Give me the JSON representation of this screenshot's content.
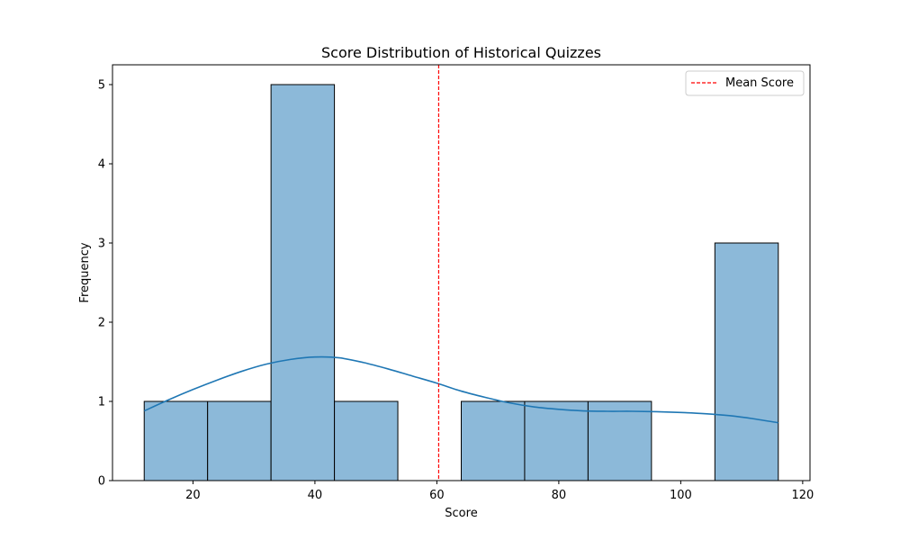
{
  "chart_data": {
    "type": "bar",
    "title": "Score Distribution of Historical Quizzes",
    "xlabel": "Score",
    "ylabel": "Frequency",
    "xlim": [
      6.8,
      121.2
    ],
    "ylim": [
      0,
      5.25
    ],
    "xticks": [
      20,
      40,
      60,
      80,
      100,
      120
    ],
    "yticks": [
      0,
      1,
      2,
      3,
      4,
      5
    ],
    "bin_edges": [
      12,
      22.4,
      32.8,
      43.2,
      53.6,
      64,
      74.4,
      84.8,
      95.2,
      105.6,
      116
    ],
    "values": [
      1,
      1,
      5,
      1,
      0,
      1,
      1,
      1,
      0,
      3
    ],
    "bar_color": "#8cb9d9",
    "bar_edge_color": "#000000",
    "kde": {
      "color": "#1f77b4",
      "x": [
        12,
        16,
        20,
        24,
        28,
        32,
        36,
        40,
        44,
        48,
        52,
        56,
        60,
        64,
        68,
        72,
        76,
        80,
        84,
        88,
        92,
        96,
        100,
        104,
        108,
        112,
        116
      ],
      "y": [
        0.88,
        1.02,
        1.15,
        1.27,
        1.38,
        1.47,
        1.53,
        1.56,
        1.55,
        1.49,
        1.41,
        1.32,
        1.23,
        1.13,
        1.05,
        0.98,
        0.93,
        0.9,
        0.88,
        0.875,
        0.875,
        0.87,
        0.86,
        0.845,
        0.82,
        0.78,
        0.73
      ]
    },
    "mean_line": {
      "x": 60.3,
      "label": "Mean Score",
      "color": "#ff0000"
    },
    "legend_position": "top-right",
    "grid": false
  }
}
